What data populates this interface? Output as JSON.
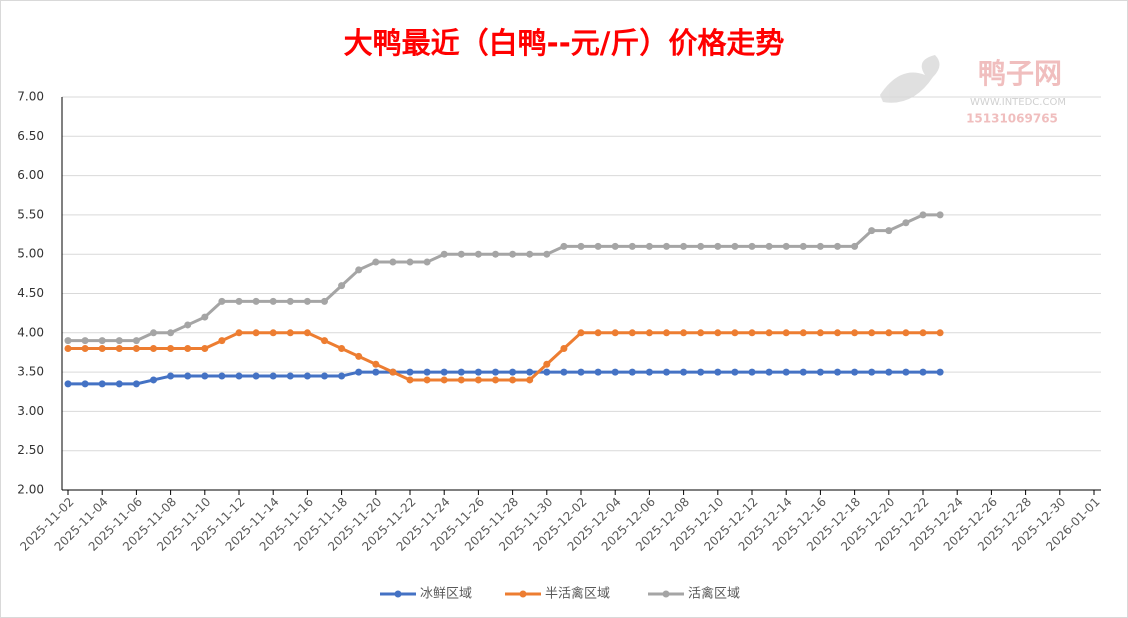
{
  "chart_data": {
    "type": "line",
    "title": "大鸭最近（白鸭--元/斤）价格走势",
    "watermark": {
      "brand": "鸭子网",
      "url": "WWW.INTEDC.COM",
      "phone": "15131069765"
    },
    "x": [
      "2025-11-02",
      "2025-11-03",
      "2025-11-04",
      "2025-11-05",
      "2025-11-06",
      "2025-11-07",
      "2025-11-08",
      "2025-11-09",
      "2025-11-10",
      "2025-11-11",
      "2025-11-12",
      "2025-11-13",
      "2025-11-14",
      "2025-11-15",
      "2025-11-16",
      "2025-11-17",
      "2025-11-18",
      "2025-11-19",
      "2025-11-20",
      "2025-11-21",
      "2025-11-22",
      "2025-11-23",
      "2025-11-24",
      "2025-11-25",
      "2025-11-26",
      "2025-11-27",
      "2025-11-28",
      "2025-11-29",
      "2025-11-30",
      "2025-12-01",
      "2025-12-02",
      "2025-12-03",
      "2025-12-04",
      "2025-12-05",
      "2025-12-06",
      "2025-12-07",
      "2025-12-08",
      "2025-12-09",
      "2025-12-10",
      "2025-12-11",
      "2025-12-12",
      "2025-12-13",
      "2025-12-14",
      "2025-12-15",
      "2025-12-16",
      "2025-12-17",
      "2025-12-18",
      "2025-12-19",
      "2025-12-20",
      "2025-12-21",
      "2025-12-22",
      "2025-12-23"
    ],
    "series": [
      {
        "name": "冰鲜区域",
        "color": "#4472c4",
        "values": [
          3.35,
          3.35,
          3.35,
          3.35,
          3.35,
          3.4,
          3.45,
          3.45,
          3.45,
          3.45,
          3.45,
          3.45,
          3.45,
          3.45,
          3.45,
          3.45,
          3.45,
          3.5,
          3.5,
          3.5,
          3.5,
          3.5,
          3.5,
          3.5,
          3.5,
          3.5,
          3.5,
          3.5,
          3.5,
          3.5,
          3.5,
          3.5,
          3.5,
          3.5,
          3.5,
          3.5,
          3.5,
          3.5,
          3.5,
          3.5,
          3.5,
          3.5,
          3.5,
          3.5,
          3.5,
          3.5,
          3.5,
          3.5,
          3.5,
          3.5,
          3.5,
          3.5
        ]
      },
      {
        "name": "半活禽区域",
        "color": "#ed7d31",
        "values": [
          3.8,
          3.8,
          3.8,
          3.8,
          3.8,
          3.8,
          3.8,
          3.8,
          3.8,
          3.9,
          4,
          4,
          4,
          4,
          4,
          3.9,
          3.8,
          3.7,
          3.6,
          3.5,
          3.4,
          3.4,
          3.4,
          3.4,
          3.4,
          3.4,
          3.4,
          3.4,
          3.6,
          3.8,
          4,
          4,
          4,
          4,
          4,
          4,
          4,
          4,
          4,
          4,
          4,
          4,
          4,
          4,
          4,
          4,
          4,
          4,
          4,
          4,
          4,
          4
        ]
      },
      {
        "name": "活禽区域",
        "color": "#a5a5a5",
        "values": [
          3.9,
          3.9,
          3.9,
          3.9,
          3.9,
          4,
          4,
          4.1,
          4.2,
          4.4,
          4.4,
          4.4,
          4.4,
          4.4,
          4.4,
          4.4,
          4.6,
          4.8,
          4.9,
          4.9,
          4.9,
          4.9,
          5,
          5,
          5,
          5,
          5,
          5,
          5,
          5.1,
          5.1,
          5.1,
          5.1,
          5.1,
          5.1,
          5.1,
          5.1,
          5.1,
          5.1,
          5.1,
          5.1,
          5.1,
          5.1,
          5.1,
          5.1,
          5.1,
          5.1,
          5.3,
          5.3,
          5.4,
          5.5,
          5.5
        ]
      }
    ],
    "xlim": [
      "2025-11-02",
      "2026-01-01"
    ],
    "xticks": [
      "2025-11-02",
      "2025-11-04",
      "2025-11-06",
      "2025-11-08",
      "2025-11-10",
      "2025-11-12",
      "2025-11-14",
      "2025-11-16",
      "2025-11-18",
      "2025-11-20",
      "2025-11-22",
      "2025-11-24",
      "2025-11-26",
      "2025-11-28",
      "2025-11-30",
      "2025-12-02",
      "2025-12-04",
      "2025-12-06",
      "2025-12-08",
      "2025-12-10",
      "2025-12-12",
      "2025-12-14",
      "2025-12-16",
      "2025-12-18",
      "2025-12-20",
      "2025-12-22",
      "2025-12-24",
      "2025-12-26",
      "2025-12-28",
      "2025-12-30",
      "2026-01-01"
    ],
    "ylim": [
      2,
      7
    ],
    "yticks": [
      {
        "value": 2,
        "label": "2.00"
      },
      {
        "value": 2.5,
        "label": "2.50"
      },
      {
        "value": 3,
        "label": "3.00"
      },
      {
        "value": 3.5,
        "label": "3.50"
      },
      {
        "value": 4,
        "label": "4.00"
      },
      {
        "value": 4.5,
        "label": "4.50"
      },
      {
        "value": 5,
        "label": "5.00"
      },
      {
        "value": 5.5,
        "label": "5.50"
      },
      {
        "value": 6,
        "label": "6.00"
      },
      {
        "value": 6.5,
        "label": "6.50"
      },
      {
        "value": 7,
        "label": "7.00"
      }
    ],
    "grid": true
  }
}
